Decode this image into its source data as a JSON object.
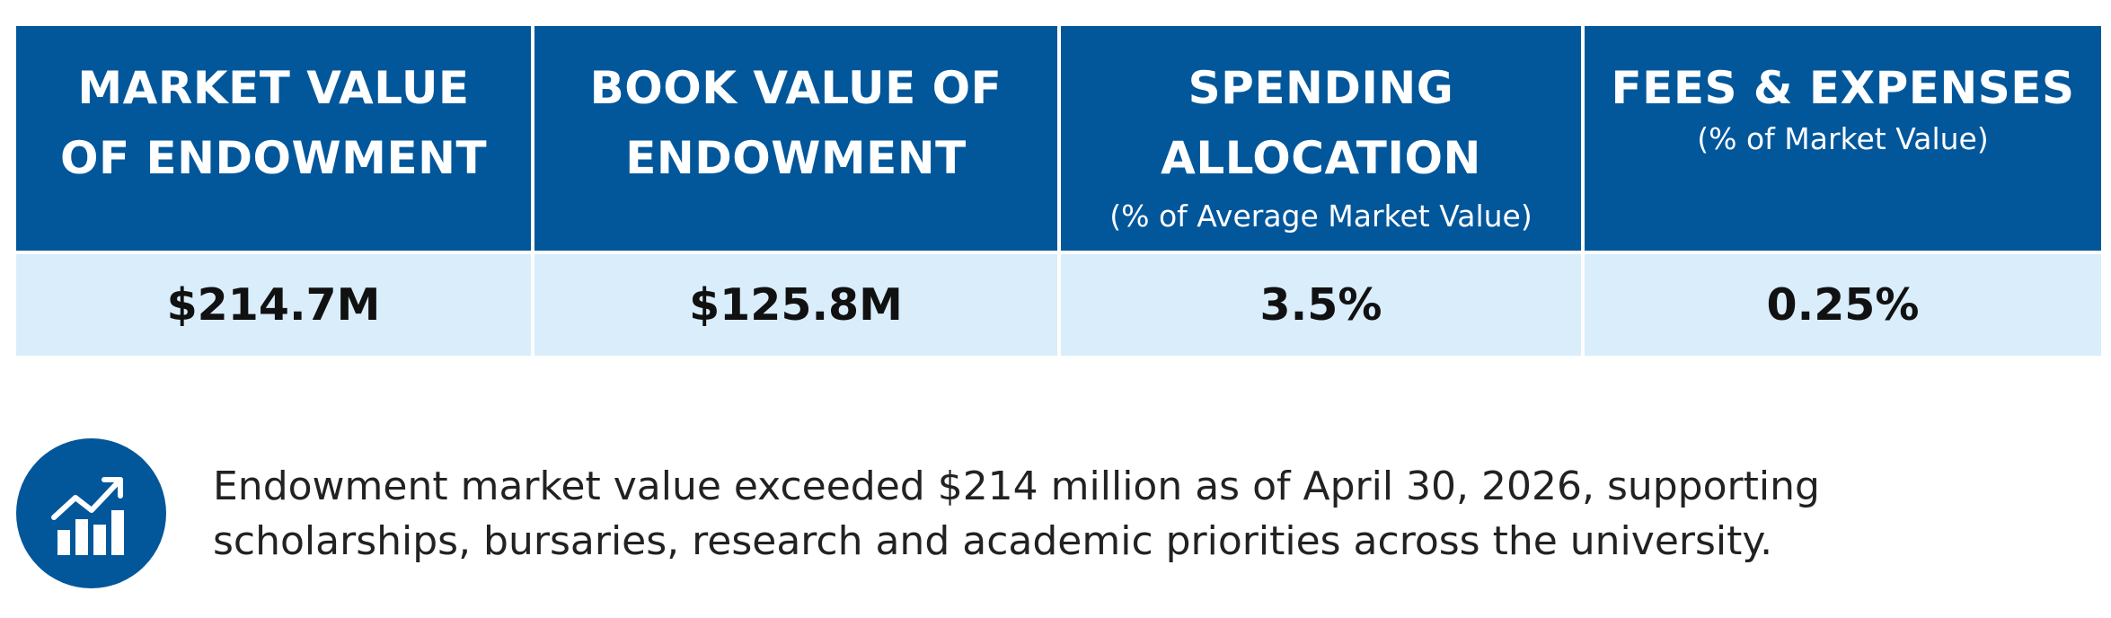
{
  "colors": {
    "header_bg": "#02579b",
    "value_bg": "#d9edfb",
    "icon_bg": "#02579b"
  },
  "table": {
    "columns": [
      {
        "title": "MARKET VALUE\nOF ENDOWMENT",
        "note": "",
        "value": "$214.7M"
      },
      {
        "title": "BOOK VALUE OF\nENDOWMENT",
        "note": "",
        "value": "$125.8M"
      },
      {
        "title": "SPENDING\nALLOCATION",
        "note": "(% of Average Market Value)",
        "value": "3.5%"
      },
      {
        "title": "FEES & EXPENSES",
        "note": "(% of Market Value)",
        "value": "0.25%"
      }
    ]
  },
  "callout": {
    "icon": "growth-chart-icon",
    "text": "Endowment market value exceeded $214 million as of April 30, 2026, supporting\nscholarships, bursaries, research and academic priorities across the university."
  }
}
